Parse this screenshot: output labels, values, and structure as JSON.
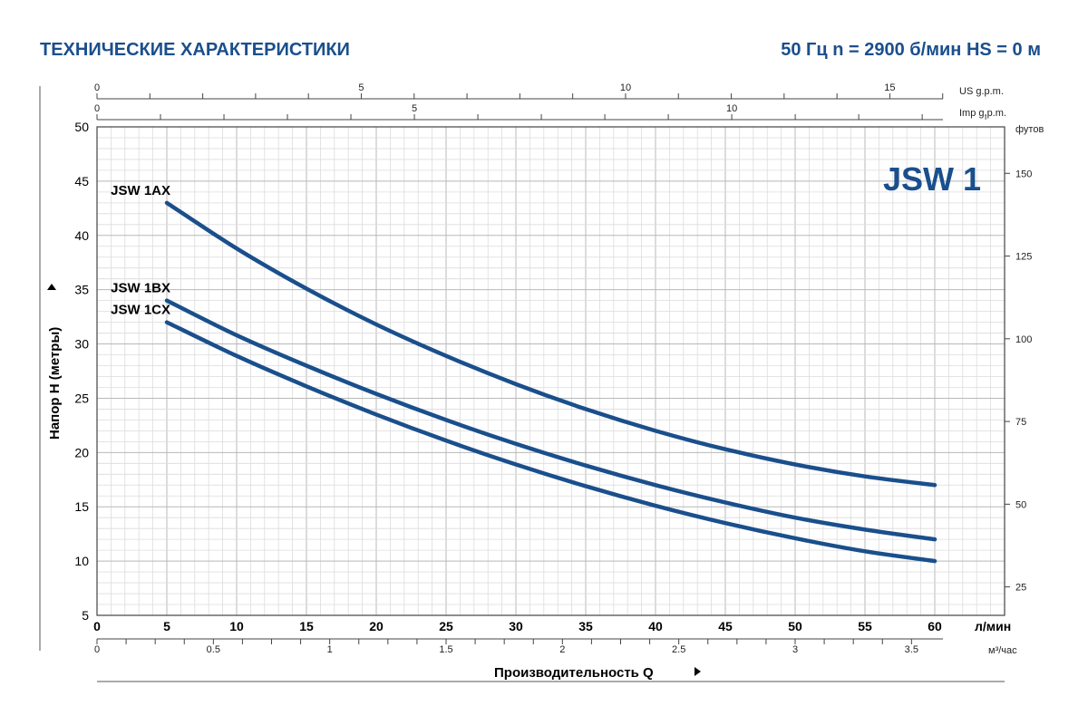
{
  "header": {
    "title": "ТЕХНИЧЕСКИЕ ХАРАКТЕРИСТИКИ",
    "specs": "50 Гц   n = 2900 б/мин   HS = 0 м"
  },
  "chart_data": {
    "type": "line",
    "model_badge": "JSW 1",
    "xlabel": "Производительность Q",
    "ylabel": "Напор H (метры)",
    "xlim": [
      0,
      65
    ],
    "ylim": [
      5,
      50
    ],
    "x_unit": "л/мин",
    "y_right_unit": "футов",
    "m3_unit": "м³/час",
    "us_gpm_unit": "US g.p.m.",
    "imp_gpm_unit": "Imp g.p.m.",
    "x_ticks": [
      0,
      5,
      10,
      15,
      20,
      25,
      30,
      35,
      40,
      45,
      50,
      55,
      60
    ],
    "y_ticks": [
      5,
      10,
      15,
      20,
      25,
      30,
      35,
      40,
      45,
      50
    ],
    "y_right_ticks": [
      25,
      50,
      75,
      100,
      125,
      150
    ],
    "m3_ticks": [
      "0",
      "0.5",
      "1",
      "1.5",
      "2",
      "2.5",
      "3",
      "3.5"
    ],
    "us_gpm_ticks": [
      "0",
      "5",
      "10",
      "15"
    ],
    "imp_gpm_ticks": [
      "0",
      "5",
      "10"
    ],
    "grid": true,
    "color": "#1a4f8c",
    "series": [
      {
        "name": "JSW 1AX",
        "x": [
          5,
          10,
          15,
          20,
          25,
          30,
          35,
          40,
          45,
          50,
          55,
          60
        ],
        "y": [
          43,
          38.8,
          35.1,
          31.8,
          28.9,
          26.3,
          24,
          22,
          20.3,
          18.9,
          17.8,
          17
        ]
      },
      {
        "name": "JSW 1BX",
        "x": [
          5,
          10,
          15,
          20,
          25,
          30,
          35,
          40,
          45,
          50,
          55,
          60
        ],
        "y": [
          34,
          30.8,
          28,
          25.4,
          23,
          20.8,
          18.8,
          17,
          15.4,
          14,
          12.9,
          12
        ]
      },
      {
        "name": "JSW 1CX",
        "x": [
          5,
          10,
          15,
          20,
          25,
          30,
          35,
          40,
          45,
          50,
          55,
          60
        ],
        "y": [
          32,
          28.9,
          26.1,
          23.5,
          21.1,
          18.9,
          16.9,
          15.1,
          13.5,
          12.1,
          10.9,
          10
        ]
      }
    ]
  }
}
